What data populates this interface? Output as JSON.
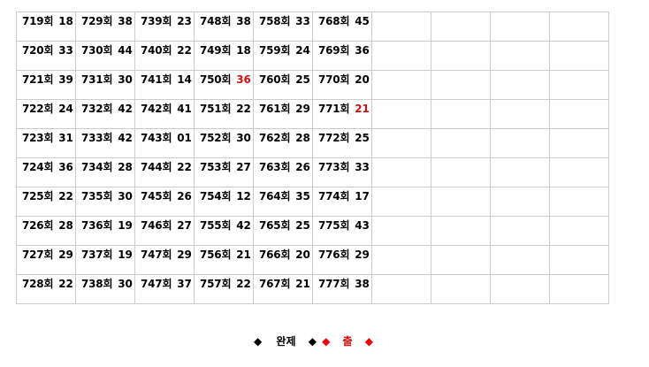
{
  "colors": {
    "highlight": "#cc1111",
    "legend_red": "#ee0000",
    "border": "#cccccc"
  },
  "table": {
    "columns": [
      [
        [
          "719회",
          "18"
        ],
        [
          "720회",
          "33"
        ],
        [
          "721회",
          "39"
        ],
        [
          "722회",
          "24"
        ],
        [
          "723회",
          "31"
        ],
        [
          "724회",
          "36"
        ],
        [
          "725회",
          "22"
        ],
        [
          "726회",
          "28"
        ],
        [
          "727회",
          "29"
        ],
        [
          "728회",
          "22"
        ]
      ],
      [
        [
          "729회",
          "38"
        ],
        [
          "730회",
          "44"
        ],
        [
          "731회",
          "30"
        ],
        [
          "732회",
          "42"
        ],
        [
          "733회",
          "42"
        ],
        [
          "734회",
          "28"
        ],
        [
          "735회",
          "30"
        ],
        [
          "736회",
          "19"
        ],
        [
          "737회",
          "19"
        ],
        [
          "738회",
          "30"
        ]
      ],
      [
        [
          "739회",
          "23"
        ],
        [
          "740회",
          "22"
        ],
        [
          "741회",
          "14"
        ],
        [
          "742회",
          "41"
        ],
        [
          "743회",
          "01"
        ],
        [
          "744회",
          "22"
        ],
        [
          "745회",
          "26"
        ],
        [
          "746회",
          "27"
        ],
        [
          "747회",
          "29"
        ],
        [
          "747회",
          "37"
        ]
      ],
      [
        [
          "748회",
          "38"
        ],
        [
          "749회",
          "18"
        ],
        [
          "750회",
          "36",
          true
        ],
        [
          "751회",
          "22"
        ],
        [
          "752회",
          "30"
        ],
        [
          "753회",
          "27"
        ],
        [
          "754회",
          "12"
        ],
        [
          "755회",
          "42"
        ],
        [
          "756회",
          "21"
        ],
        [
          "757회",
          "22"
        ]
      ],
      [
        [
          "758회",
          "33"
        ],
        [
          "759회",
          "24"
        ],
        [
          "760회",
          "25"
        ],
        [
          "761회",
          "29"
        ],
        [
          "762회",
          "28"
        ],
        [
          "763회",
          "26"
        ],
        [
          "764회",
          "35"
        ],
        [
          "765회",
          "25"
        ],
        [
          "766회",
          "20"
        ],
        [
          "767회",
          "21"
        ]
      ],
      [
        [
          "768회",
          "45"
        ],
        [
          "769회",
          "36"
        ],
        [
          "770회",
          "20"
        ],
        [
          "771회",
          "21",
          true
        ],
        [
          "772회",
          "25"
        ],
        [
          "773회",
          "33"
        ],
        [
          "774회",
          "17"
        ],
        [
          "775회",
          "43"
        ],
        [
          "776회",
          "29"
        ],
        [
          "777회",
          "38"
        ]
      ],
      [],
      [],
      [],
      []
    ]
  },
  "legend": {
    "diamond": "◆",
    "complete_label": "완제",
    "out_label": "출"
  }
}
